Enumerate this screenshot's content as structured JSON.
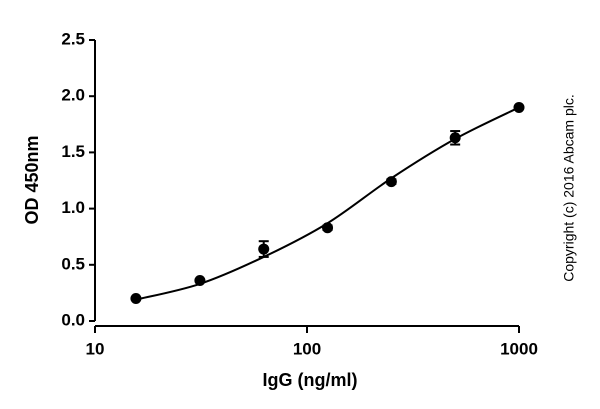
{
  "chart_data": {
    "type": "scatter",
    "x_label": "IgG (ng/ml)",
    "y_label": "OD 450nm",
    "annotation": "Copyright (c) 2016 Abcam plc.",
    "x_scale": "log",
    "xlim": [
      10,
      1000
    ],
    "xticks": [
      10,
      100,
      1000
    ],
    "ylim": [
      0,
      2.5
    ],
    "yticks": [
      {
        "value": 0,
        "label": "0.0"
      },
      0.5,
      {
        "value": 1,
        "label": "1.0"
      },
      1.5,
      {
        "value": 2,
        "label": "2.0"
      },
      2.5
    ],
    "color": "#000000",
    "points": {
      "x": [
        15.6,
        31.25,
        62.5,
        125,
        250,
        500,
        1000
      ],
      "values": [
        0.2,
        0.36,
        0.64,
        0.83,
        1.24,
        1.63,
        1.9
      ],
      "errors": [
        0.01,
        0.01,
        0.07,
        0.02,
        0.02,
        0.06,
        0.01
      ]
    },
    "fit": {
      "x": [
        15.6,
        31.25,
        62.5,
        125,
        250,
        500,
        1000
      ],
      "values": [
        0.19,
        0.33,
        0.57,
        0.87,
        1.27,
        1.62,
        1.9
      ]
    }
  }
}
